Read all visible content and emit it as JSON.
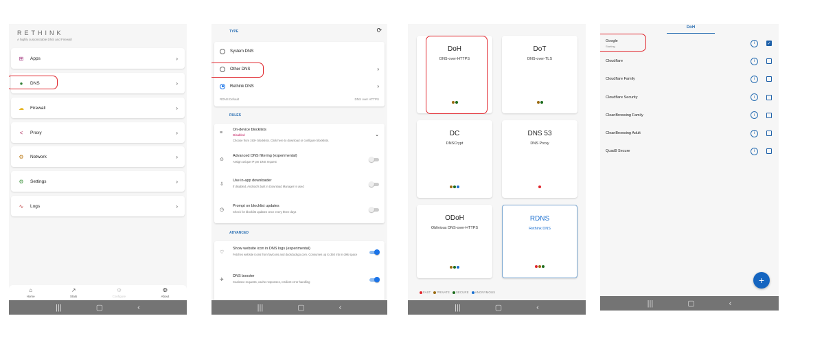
{
  "colors": {
    "fast": "#e0242b",
    "private": "#9a6a12",
    "secure": "#1b6b1b",
    "anonymous": "#1a6fd0",
    "accent": "#2a6fb3",
    "highlight": "#e0242b"
  },
  "home": {
    "brand": "RETHINK",
    "tagline": "A highly customizable DNS and Firewall",
    "items": [
      {
        "label": "Apps",
        "icon": "apps-grid-icon",
        "glyph": "⊞",
        "color": "#a0307a"
      },
      {
        "label": "DNS",
        "icon": "globe-icon",
        "glyph": "●",
        "color": "#2e7d32"
      },
      {
        "label": "Firewall",
        "icon": "cloud-icon",
        "glyph": "☁",
        "color": "#e6b422"
      },
      {
        "label": "Proxy",
        "icon": "share-icon",
        "glyph": "<",
        "color": "#b03060"
      },
      {
        "label": "Network",
        "icon": "network-icon",
        "glyph": "⚙",
        "color": "#c08020"
      },
      {
        "label": "Settings",
        "icon": "settings-icon",
        "glyph": "⚙",
        "color": "#4a9a4a"
      },
      {
        "label": "Logs",
        "icon": "pulse-icon",
        "glyph": "∿",
        "color": "#c04040"
      }
    ],
    "bottom_nav": [
      {
        "label": "Home",
        "icon": "home-icon",
        "glyph": "⌂"
      },
      {
        "label": "Stats",
        "icon": "stats-icon",
        "glyph": "↗"
      },
      {
        "label": "Configure",
        "icon": "configure-icon",
        "glyph": "⚙"
      },
      {
        "label": "About",
        "icon": "about-icon",
        "glyph": "❂"
      }
    ]
  },
  "dns_settings": {
    "type_label": "TYPE",
    "options": [
      {
        "label": "System DNS",
        "selected": false
      },
      {
        "label": "Other DNS",
        "selected": false,
        "chevron": true
      },
      {
        "label": "Rethink DNS",
        "selected": true,
        "chevron": true
      }
    ],
    "footer_left": "RDNS Default",
    "footer_right": "DNS over HTTPS",
    "rules_label": "RULES",
    "rules": [
      {
        "title": "On-device blocklists",
        "status": "Disabled",
        "desc": "Choose from 193+ blocklists. Click here to download or configure blocklists.",
        "icon": "blocklist-icon",
        "glyph": "≡",
        "expand": true
      },
      {
        "title": "Advanced DNS filtering (experimental)",
        "desc": "Assign unique IP per DNS request",
        "icon": "filter-icon",
        "glyph": "⊙",
        "on": false
      },
      {
        "title": "Use in-app downloader",
        "desc": "If disabled, Android's built in Download Manager is used",
        "icon": "download-icon",
        "glyph": "⇩",
        "on": false
      },
      {
        "title": "Prompt on blocklist updates",
        "desc": "Check for blocklist updates once every three days",
        "icon": "clock-icon",
        "glyph": "◷",
        "on": false
      }
    ],
    "advanced_label": "ADVANCED",
    "advanced": [
      {
        "title": "Show website icon in DNS logs (experimental)",
        "desc": "Fetches website icons from favicons and duckduckgo.com. Consumes up to 350 mb in disk space",
        "icon": "heart-icon",
        "glyph": "♡",
        "on": true
      },
      {
        "title": "DNS booster",
        "desc": "Coalesce requests, cache responses, resilient error handling",
        "icon": "rocket-icon",
        "glyph": "✈",
        "on": true
      }
    ]
  },
  "dns_types": {
    "cards": [
      {
        "name": "DoH",
        "sub": "DNS-over-HTTPS",
        "dots": [
          "private",
          "secure"
        ]
      },
      {
        "name": "DoT",
        "sub": "DNS-over-TLS",
        "dots": [
          "private",
          "secure"
        ]
      },
      {
        "name": "DC",
        "sub": "DNSCrypt",
        "dots": [
          "private",
          "secure",
          "anonymous"
        ]
      },
      {
        "name": "DNS 53",
        "sub": "DNS Proxy",
        "dots": [
          "fast"
        ]
      },
      {
        "name": "ODoH",
        "sub": "Oblivious DNS-over-HTTPS",
        "dots": [
          "private",
          "secure",
          "anonymous"
        ]
      },
      {
        "name": "RDNS",
        "sub": "Rethink DNS",
        "dots": [
          "fast",
          "private",
          "secure"
        ],
        "selected": true
      }
    ],
    "legend": [
      {
        "key": "fast",
        "label": "FAST"
      },
      {
        "key": "private",
        "label": "PRIVATE"
      },
      {
        "key": "secure",
        "label": "SECURE"
      },
      {
        "key": "anonymous",
        "label": "ANONYMOUS"
      }
    ]
  },
  "doh_list": {
    "tab": "DoH",
    "items": [
      {
        "name": "Google",
        "status": "Starting",
        "checked": true
      },
      {
        "name": "Cloudflare"
      },
      {
        "name": "Cloudflare Family"
      },
      {
        "name": "Cloudflare Security"
      },
      {
        "name": "CleanBrowsing Family"
      },
      {
        "name": "CleanBrowsing Adult"
      },
      {
        "name": "Quad9 Secure"
      }
    ],
    "add_label": "+"
  },
  "system_nav": {
    "recents": "|||",
    "home": "▢",
    "back": "‹"
  }
}
